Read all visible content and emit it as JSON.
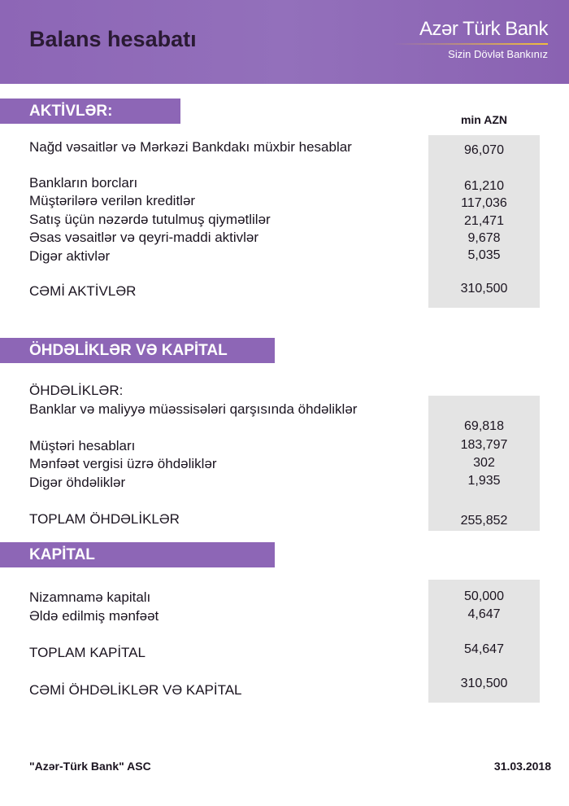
{
  "header": {
    "title": "Balans hesabatı",
    "logo_name": "Azər Türk Bank",
    "logo_tagline": "Sizin Dövlət Bankınız"
  },
  "unit": "min AZN",
  "assets": {
    "heading": "AKTİVLƏR:",
    "items": [
      {
        "label": "Nağd vəsaitlər və Mərkəzi Bankdakı müxbir hesablar",
        "value": "96,070"
      },
      {
        "label": "Bankların borcları",
        "value": "61,210"
      },
      {
        "label": "Müştərilərə verilən kreditlər",
        "value": "117,036"
      },
      {
        "label": "Satış üçün nəzərdə tutulmuş qiymətlilər",
        "value": "21,471"
      },
      {
        "label": "Əsas vəsaitlər və qeyri-maddi aktivlər",
        "value": "9,678"
      },
      {
        "label": "Digər aktivlər",
        "value": "5,035"
      }
    ],
    "total_label": "CƏMİ AKTİVLƏR",
    "total_value": "310,500"
  },
  "liabilities": {
    "heading": "ÖHDƏLİKLƏR VƏ KAPİTAL",
    "subheading": "ÖHDƏLİKLƏR:",
    "items": [
      {
        "label": "Banklar və maliyyə müəssisələri qarşısında öhdəliklər",
        "value": "69,818"
      },
      {
        "label": "Müştəri hesabları",
        "value": "183,797"
      },
      {
        "label": "Mənfəət vergisi üzrə öhdəliklər",
        "value": "302"
      },
      {
        "label": "Digər öhdəliklər",
        "value": "1,935"
      }
    ],
    "total_label": "TOPLAM ÖHDƏLİKLƏR",
    "total_value": "255,852"
  },
  "capital": {
    "heading": "KAPİTAL",
    "items": [
      {
        "label": "Nizamnamə kapitalı",
        "value": "50,000"
      },
      {
        "label": "Əldə edilmiş mənfəət",
        "value": "4,647"
      }
    ],
    "total_label": "TOPLAM KAPİTAL",
    "total_value": "54,647",
    "grand_total_label": "CƏMİ ÖHDƏLİKLƏR VƏ KAPİTAL",
    "grand_total_value": "310,500"
  },
  "footer": {
    "company": "\"Azər-Türk Bank\" ASC",
    "date": "31.03.2018"
  },
  "colors": {
    "brand_purple": "#8d66b6",
    "value_box": "#e4e4e4"
  }
}
